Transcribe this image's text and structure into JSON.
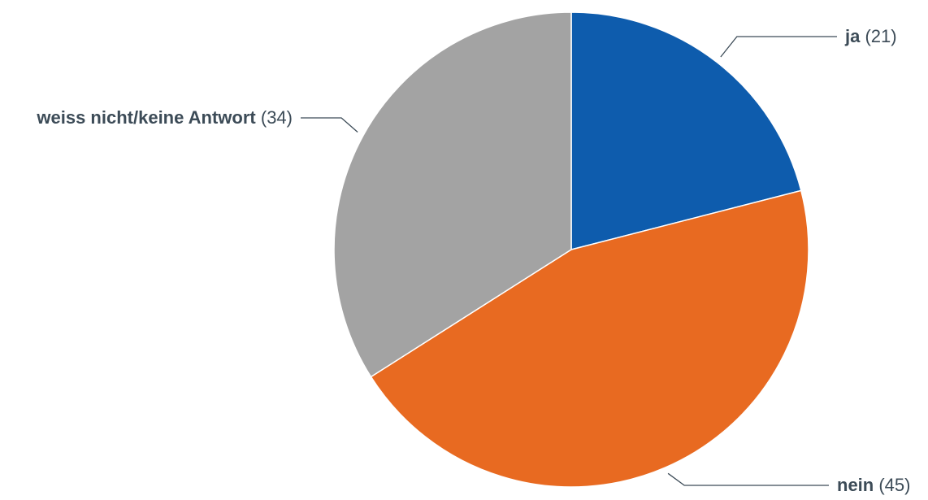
{
  "chart_data": {
    "type": "pie",
    "title": "",
    "start_angle_deg": 0,
    "direction": "clockwise",
    "slices": [
      {
        "label": "ja",
        "value_text": "(21)",
        "value": 21,
        "color": "#0e5cad"
      },
      {
        "label": "nein",
        "value_text": "(45)",
        "value": 45,
        "color": "#e86a21"
      },
      {
        "label": "weiss nicht/keine Antwort",
        "value_text": "(34)",
        "value": 34,
        "color": "#a3a3a3"
      }
    ],
    "legend": "none",
    "data_labels": "outside-with-leader-lines"
  }
}
